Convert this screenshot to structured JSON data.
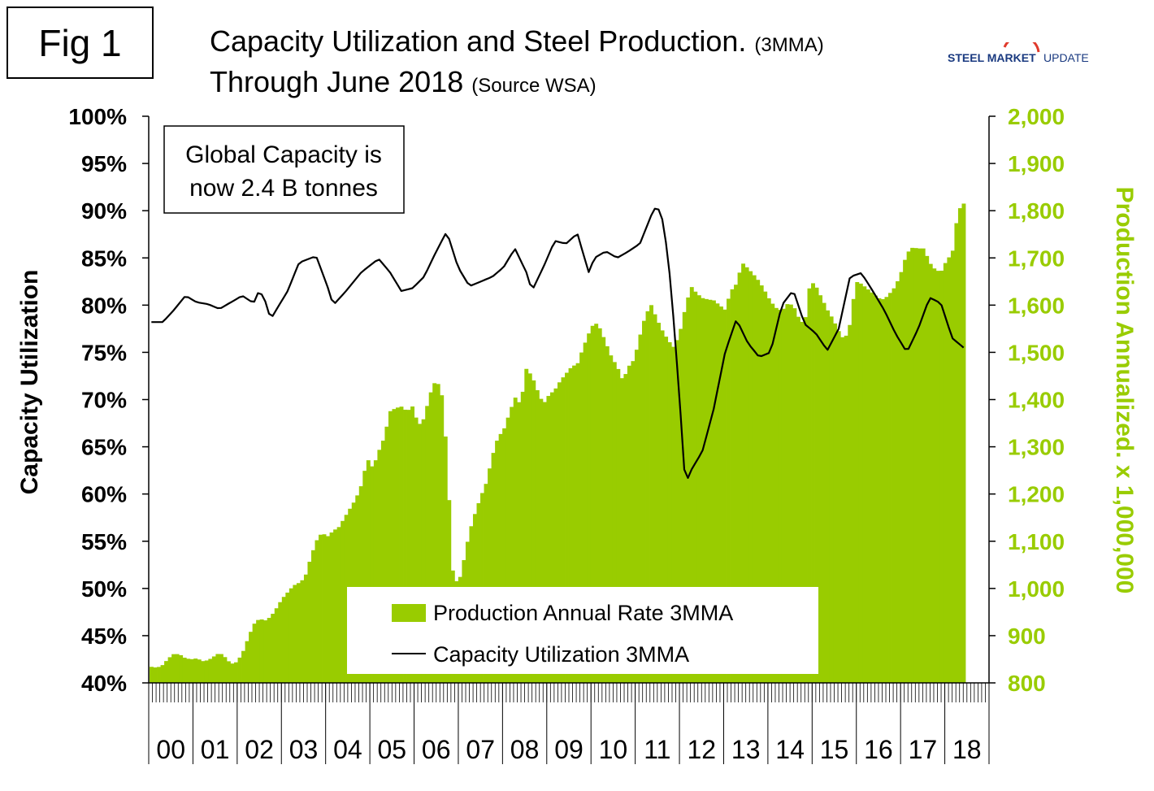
{
  "figure_label": "Fig 1",
  "title": {
    "line1_main": "Capacity Utilization and Steel Production.",
    "line1_note": "(3MMA)",
    "line2_main": "Through June 2018",
    "line2_note": "(Source WSA)"
  },
  "logo": {
    "word1": "STEEL MARKET",
    "word2": "UPDATE"
  },
  "colors": {
    "production": "#99cc00",
    "utilization": "#000000",
    "right_axis": "#99cc00"
  },
  "chart_data": {
    "type": "bar",
    "title": "Capacity Utilization and Steel Production. (3MMA) Through June 2018",
    "ylabel": "Capacity Utilization",
    "y2label": "Production Annualized. x 1,000,000",
    "ylim": [
      40,
      100
    ],
    "y2lim": [
      800,
      2000
    ],
    "yticks": [
      "40%",
      "45%",
      "50%",
      "55%",
      "60%",
      "65%",
      "70%",
      "75%",
      "80%",
      "85%",
      "90%",
      "95%",
      "100%"
    ],
    "y2ticks": [
      "800",
      "900",
      "1,000",
      "1,100",
      "1,200",
      "1,300",
      "1,400",
      "1,500",
      "1,600",
      "1,700",
      "1,800",
      "1,900",
      "2,000"
    ],
    "categories": [
      "00",
      "01",
      "02",
      "03",
      "04",
      "05",
      "06",
      "07",
      "08",
      "09",
      "10",
      "11",
      "12",
      "13",
      "14",
      "15",
      "16",
      "17",
      "18"
    ],
    "annotation": [
      "Global Capacity is",
      "now 2.4 B tonnes"
    ],
    "legend": [
      {
        "name": "Production Annual Rate 3MMA",
        "kind": "bar"
      },
      {
        "name": "Capacity Utilization 3MMA",
        "kind": "line"
      }
    ],
    "series": [
      {
        "name": "Production Annual Rate 3MMA",
        "axis": "right",
        "type": "bar",
        "points": [
          [
            0,
            834
          ],
          [
            1,
            832
          ],
          [
            2,
            838
          ],
          [
            3,
            852
          ],
          [
            4,
            862
          ],
          [
            5,
            860
          ],
          [
            6,
            852
          ],
          [
            7,
            850
          ],
          [
            8,
            852
          ],
          [
            9,
            846
          ],
          [
            10,
            848
          ],
          [
            11,
            856
          ],
          [
            12,
            864
          ],
          [
            13,
            854
          ],
          [
            14,
            840
          ],
          [
            15,
            844
          ],
          [
            16,
            862
          ],
          [
            17,
            894
          ],
          [
            18,
            924
          ],
          [
            19,
            936
          ],
          [
            20,
            932
          ],
          [
            21,
            940
          ],
          [
            22,
            958
          ],
          [
            23,
            978
          ],
          [
            24,
            992
          ],
          [
            25,
            1006
          ],
          [
            26,
            1012
          ],
          [
            27,
            1022
          ],
          [
            28,
            1064
          ],
          [
            29,
            1100
          ],
          [
            30,
            1118
          ],
          [
            31,
            1110
          ],
          [
            32,
            1122
          ],
          [
            33,
            1130
          ],
          [
            34,
            1150
          ],
          [
            35,
            1170
          ],
          [
            36,
            1190
          ],
          [
            37,
            1220
          ],
          [
            38,
            1275
          ],
          [
            39,
            1255
          ],
          [
            40,
            1290
          ],
          [
            41,
            1320
          ],
          [
            42,
            1375
          ],
          [
            43,
            1382
          ],
          [
            44,
            1385
          ],
          [
            45,
            1375
          ],
          [
            46,
            1386
          ],
          [
            47,
            1345
          ],
          [
            48,
            1360
          ],
          [
            49,
            1410
          ],
          [
            50,
            1440
          ],
          [
            51,
            1425
          ],
          [
            52,
            1290
          ],
          [
            53,
            1040
          ],
          [
            54,
            1005
          ],
          [
            55,
            1060
          ],
          [
            56,
            1120
          ],
          [
            57,
            1160
          ],
          [
            58,
            1195
          ],
          [
            59,
            1225
          ],
          [
            60,
            1280
          ],
          [
            61,
            1320
          ],
          [
            62,
            1335
          ],
          [
            63,
            1370
          ],
          [
            64,
            1405
          ],
          [
            65,
            1390
          ],
          [
            66,
            1465
          ],
          [
            67,
            1450
          ],
          [
            68,
            1418
          ],
          [
            69,
            1390
          ],
          [
            70,
            1410
          ],
          [
            71,
            1420
          ],
          [
            72,
            1440
          ],
          [
            73,
            1455
          ],
          [
            74,
            1470
          ],
          [
            75,
            1475
          ],
          [
            76,
            1510
          ],
          [
            77,
            1540
          ],
          [
            78,
            1565
          ],
          [
            79,
            1550
          ],
          [
            80,
            1520
          ],
          [
            81,
            1490
          ],
          [
            82,
            1470
          ],
          [
            83,
            1440
          ],
          [
            84,
            1470
          ],
          [
            85,
            1485
          ],
          [
            86,
            1535
          ],
          [
            87,
            1580
          ],
          [
            88,
            1600
          ],
          [
            89,
            1570
          ],
          [
            90,
            1545
          ],
          [
            91,
            1525
          ],
          [
            92,
            1510
          ],
          [
            93,
            1540
          ],
          [
            94,
            1595
          ],
          [
            95,
            1640
          ],
          [
            96,
            1625
          ],
          [
            97,
            1615
          ],
          [
            98,
            1612
          ],
          [
            99,
            1610
          ],
          [
            100,
            1600
          ],
          [
            101,
            1590
          ],
          [
            102,
            1630
          ],
          [
            103,
            1645
          ],
          [
            104,
            1690
          ],
          [
            105,
            1678
          ],
          [
            106,
            1665
          ],
          [
            107,
            1650
          ],
          [
            108,
            1630
          ],
          [
            109,
            1608
          ],
          [
            110,
            1594
          ],
          [
            111,
            1588
          ],
          [
            112,
            1603
          ],
          [
            113,
            1600
          ],
          [
            114,
            1572
          ],
          [
            115,
            1558
          ],
          [
            116,
            1652
          ],
          [
            117,
            1640
          ],
          [
            118,
            1615
          ],
          [
            119,
            1590
          ],
          [
            120,
            1570
          ],
          [
            121,
            1545
          ],
          [
            122,
            1525
          ],
          [
            123,
            1560
          ],
          [
            124,
            1650
          ],
          [
            125,
            1645
          ],
          [
            126,
            1635
          ],
          [
            127,
            1625
          ],
          [
            128,
            1615
          ],
          [
            129,
            1612
          ],
          [
            130,
            1625
          ],
          [
            131,
            1640
          ],
          [
            132,
            1670
          ],
          [
            133,
            1710
          ],
          [
            134,
            1722
          ],
          [
            135,
            1720
          ],
          [
            136,
            1720
          ],
          [
            137,
            1690
          ],
          [
            138,
            1675
          ],
          [
            139,
            1670
          ],
          [
            140,
            1695
          ],
          [
            141,
            1710
          ],
          [
            142,
            1800
          ],
          [
            143,
            1815
          ]
        ]
      },
      {
        "name": "Capacity Utilization 3MMA",
        "axis": "left",
        "type": "line",
        "points": [
          [
            0,
            78.2
          ],
          [
            2,
            78.2
          ],
          [
            4,
            79.5
          ],
          [
            6,
            81.0
          ],
          [
            8,
            80.3
          ],
          [
            10,
            80.1
          ],
          [
            12,
            79.6
          ],
          [
            14,
            80.3
          ],
          [
            16,
            81.0
          ],
          [
            18,
            80.2
          ],
          [
            19,
            81.6
          ],
          [
            20,
            80.5
          ],
          [
            21,
            78.5
          ],
          [
            24,
            81.5
          ],
          [
            26,
            84.5
          ],
          [
            29,
            85.2
          ],
          [
            31,
            82.0
          ],
          [
            32,
            80.0
          ],
          [
            34,
            81.3
          ],
          [
            37,
            83.5
          ],
          [
            40,
            84.9
          ],
          [
            42,
            83.5
          ],
          [
            44,
            81.5
          ],
          [
            46,
            81.8
          ],
          [
            48,
            83.0
          ],
          [
            50,
            85.5
          ],
          [
            52,
            87.8
          ],
          [
            54,
            84.0
          ],
          [
            56,
            82.0
          ],
          [
            58,
            82.5
          ],
          [
            60,
            83.0
          ],
          [
            62,
            84.0
          ],
          [
            64,
            86.0
          ],
          [
            66,
            83.5
          ],
          [
            67,
            81.5
          ],
          [
            69,
            84.0
          ],
          [
            71,
            86.8
          ],
          [
            73,
            86.5
          ],
          [
            75,
            87.6
          ],
          [
            76,
            85.5
          ],
          [
            77,
            83.5
          ],
          [
            78,
            85.0
          ],
          [
            80,
            85.7
          ],
          [
            82,
            85.0
          ],
          [
            84,
            85.7
          ],
          [
            86,
            86.5
          ],
          [
            88,
            89.5
          ],
          [
            89,
            90.6
          ],
          [
            90,
            89.0
          ],
          [
            91,
            85.0
          ],
          [
            92,
            78.0
          ],
          [
            93,
            70.0
          ],
          [
            94,
            61.0
          ],
          [
            95,
            62.5
          ],
          [
            97,
            64.5
          ],
          [
            99,
            69.0
          ],
          [
            101,
            75.0
          ],
          [
            103,
            78.5
          ],
          [
            105,
            76.0
          ],
          [
            107,
            74.5
          ],
          [
            109,
            75.0
          ],
          [
            111,
            80.0
          ],
          [
            113,
            81.6
          ],
          [
            115,
            78.0
          ],
          [
            117,
            77.0
          ],
          [
            119,
            75.2
          ],
          [
            121,
            77.5
          ],
          [
            123,
            83.0
          ],
          [
            125,
            83.4
          ],
          [
            127,
            81.5
          ],
          [
            129,
            79.5
          ],
          [
            131,
            77.0
          ],
          [
            133,
            75.0
          ],
          [
            135,
            77.5
          ],
          [
            137,
            80.8
          ],
          [
            139,
            80.2
          ],
          [
            141,
            76.5
          ],
          [
            143,
            75.5
          ]
        ]
      }
    ]
  }
}
